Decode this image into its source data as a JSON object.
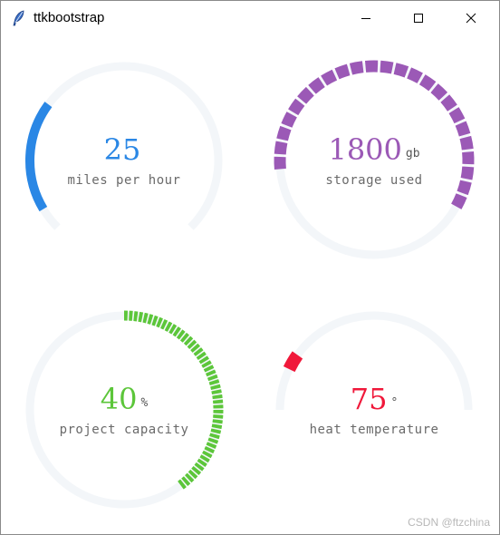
{
  "window": {
    "title": "ttkbootstrap",
    "icon": "feather-icon",
    "controls": [
      "minimize-icon",
      "maximize-icon",
      "close-icon"
    ]
  },
  "meters": [
    {
      "id": "speed",
      "value": "25",
      "unit": "",
      "label": "miles per hour",
      "color": "#2a87e5",
      "trough_color": "#f3f6f9",
      "fraction": 0.25,
      "arc_sweep_deg": 270,
      "segmented": false
    },
    {
      "id": "storage",
      "value": "1800",
      "unit": "gb",
      "label": "storage used",
      "color": "#9b59b6",
      "trough_color": "#f3f6f9",
      "fraction": 0.6,
      "arc_sweep_deg": 360,
      "segmented": true
    },
    {
      "id": "capacity",
      "value": "40",
      "unit": "%",
      "label": "project capacity",
      "color": "#5cc63a",
      "trough_color": "#f3f6f9",
      "fraction": 0.4,
      "arc_sweep_deg": 360,
      "segmented": true
    },
    {
      "id": "heat",
      "value": "75",
      "unit": "°",
      "label": "heat temperature",
      "color": "#f0183a",
      "trough_color": "#f3f6f9",
      "fraction": 0.17,
      "arc_sweep_deg": 180,
      "segmented": false
    }
  ],
  "watermark": "CSDN @ftzchina"
}
